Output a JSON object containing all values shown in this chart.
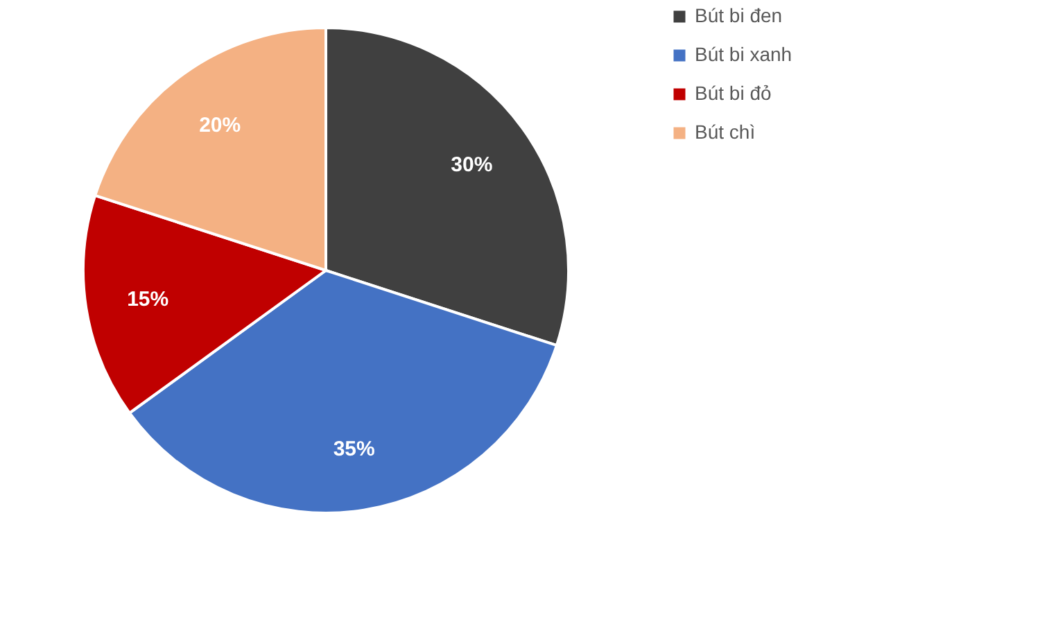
{
  "chart_data": {
    "type": "pie",
    "categories": [
      "Bút bi đen",
      "Bút bi xanh",
      "Bút bi đỏ",
      "Bút chì"
    ],
    "values": [
      30,
      35,
      15,
      20
    ],
    "colors": [
      "#404040",
      "#4472c4",
      "#c00000",
      "#f4b183"
    ],
    "value_labels": [
      "30%",
      "35%",
      "15%",
      "20%"
    ],
    "legend": "right"
  }
}
